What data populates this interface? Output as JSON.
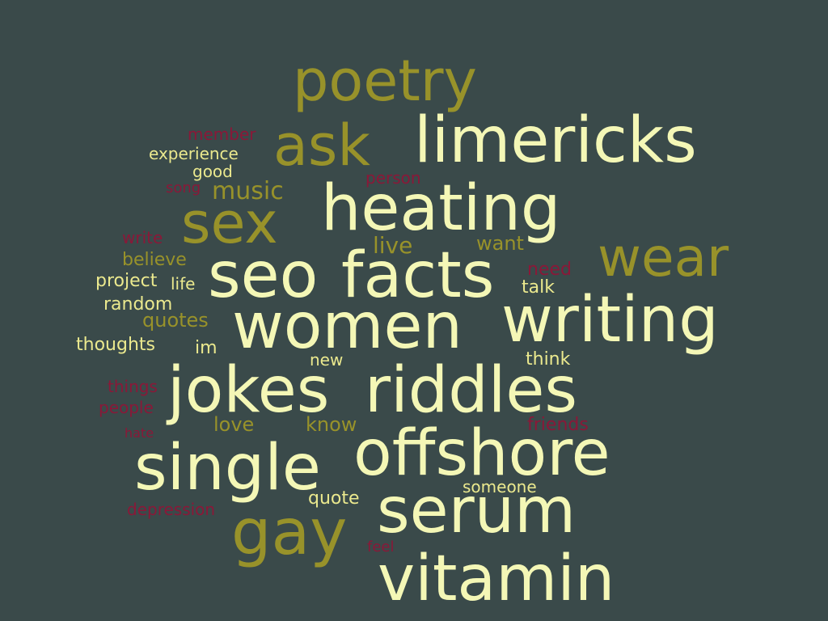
{
  "palette": {
    "background": "#3a4a4a",
    "cream": "#f4f7b6",
    "olive": "#98922a",
    "red": "#8a1838",
    "yellow": "#ebe98e"
  },
  "words": [
    {
      "text": "poetry"
    },
    {
      "text": "ask"
    },
    {
      "text": "limericks"
    },
    {
      "text": "member"
    },
    {
      "text": "experience"
    },
    {
      "text": "good"
    },
    {
      "text": "person"
    },
    {
      "text": "song"
    },
    {
      "text": "music"
    },
    {
      "text": "heating"
    },
    {
      "text": "sex"
    },
    {
      "text": "write"
    },
    {
      "text": "live"
    },
    {
      "text": "want"
    },
    {
      "text": "wear"
    },
    {
      "text": "believe"
    },
    {
      "text": "seo"
    },
    {
      "text": "facts"
    },
    {
      "text": "need"
    },
    {
      "text": "project"
    },
    {
      "text": "life"
    },
    {
      "text": "talk"
    },
    {
      "text": "random"
    },
    {
      "text": "women"
    },
    {
      "text": "writing"
    },
    {
      "text": "quotes"
    },
    {
      "text": "thoughts"
    },
    {
      "text": "im"
    },
    {
      "text": "new"
    },
    {
      "text": "think"
    },
    {
      "text": "jokes"
    },
    {
      "text": "riddles"
    },
    {
      "text": "things"
    },
    {
      "text": "people"
    },
    {
      "text": "love"
    },
    {
      "text": "know"
    },
    {
      "text": "friends"
    },
    {
      "text": "hate"
    },
    {
      "text": "offshore"
    },
    {
      "text": "single"
    },
    {
      "text": "someone"
    },
    {
      "text": "quote"
    },
    {
      "text": "depression"
    },
    {
      "text": "serum"
    },
    {
      "text": "gay"
    },
    {
      "text": "feel"
    },
    {
      "text": "vitamin"
    }
  ]
}
